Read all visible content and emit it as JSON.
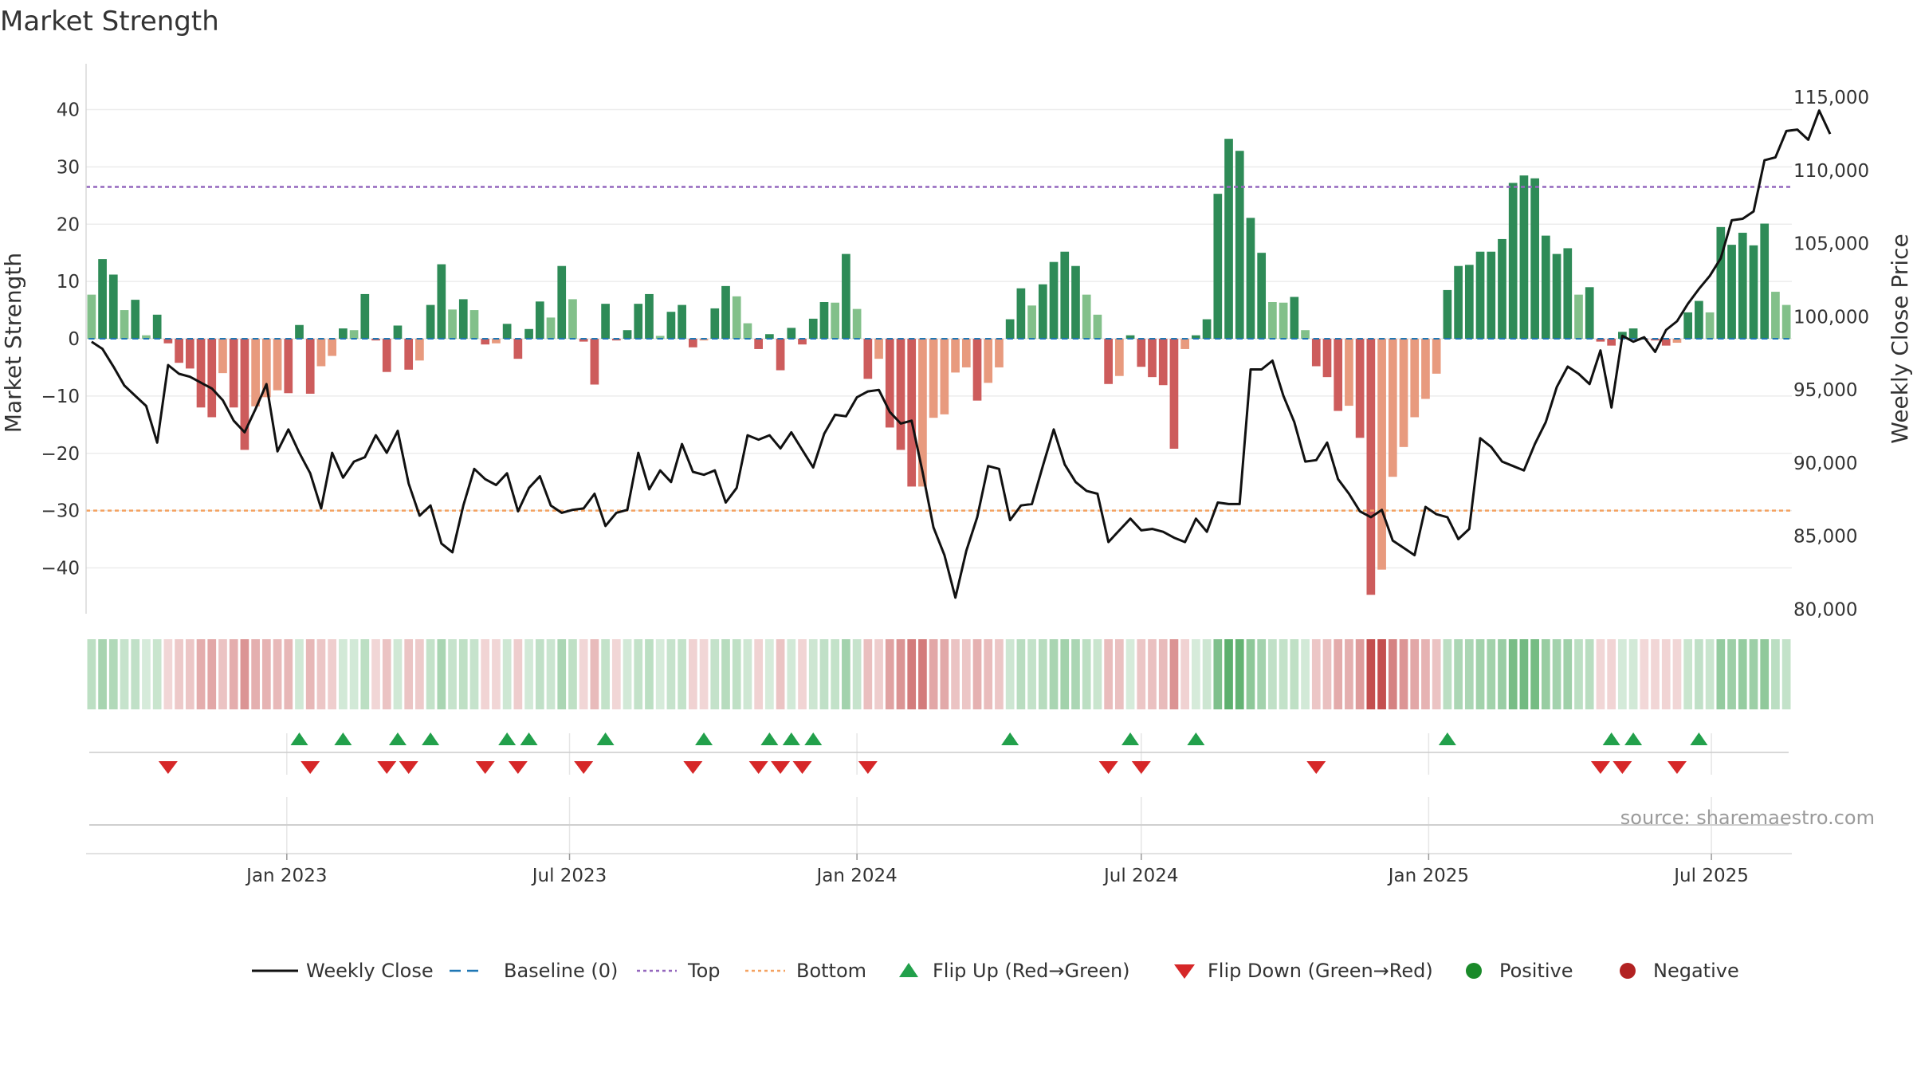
{
  "chart_data": {
    "type": "bar",
    "title": "Market Strength",
    "y_left_label": "Market Strength",
    "y_right_label": "Weekly Close Price",
    "source": "source: sharemaestro.com",
    "y_left_ticks": [
      40,
      30,
      20,
      10,
      0,
      -10,
      -20,
      -30,
      -40
    ],
    "y_left_tick_labels": [
      "40",
      "30",
      "20",
      "10",
      "0",
      "−10",
      "−20",
      "−30",
      "−40"
    ],
    "y_left_range": [
      -48,
      48
    ],
    "y_right_ticks": [
      115000,
      110000,
      105000,
      100000,
      95000,
      90000,
      85000,
      80000
    ],
    "y_right_tick_labels": [
      "115,000",
      "110,000",
      "105,000",
      "100,000",
      "95,000",
      "90,000",
      "85,000",
      "80,000"
    ],
    "y_right_range": [
      79700,
      117300
    ],
    "x_start": "2022-08-29",
    "x_ticks": [
      "2023-01-01",
      "2023-07-01",
      "2024-01-01",
      "2024-07-01",
      "2025-01-01",
      "2025-07-01"
    ],
    "x_tick_labels": [
      "Jan 2023",
      "Jul 2023",
      "Jan 2024",
      "Jul 2024",
      "Jan 2025",
      "Jul 2025"
    ],
    "top_line": 26.5,
    "bottom_line": -30,
    "baseline": 0,
    "colors": {
      "strong_pos": "#2e8b57",
      "weak_pos": "#82c08a",
      "strong_neg": "#cd5c5c",
      "weak_neg": "#e89a7e",
      "price_line": "#111111",
      "baseline": "#1f77b4",
      "top": "#9467bd",
      "bottom": "#f4a261",
      "flip_up": "#22a04b",
      "flip_down": "#d62728",
      "positive": "#1a8a2a",
      "negative": "#b22222"
    },
    "strength": [
      7.7,
      13.9,
      11.2,
      5.0,
      6.8,
      0.6,
      4.2,
      -0.8,
      -4.2,
      -5.2,
      -12.0,
      -13.7,
      -6.0,
      -12.0,
      -19.4,
      -11.8,
      -10.2,
      -9.0,
      -9.5,
      2.4,
      -9.6,
      -4.8,
      -3.0,
      1.8,
      1.5,
      7.8,
      -0.3,
      -5.8,
      2.3,
      -5.4,
      -3.8,
      5.9,
      13.0,
      5.1,
      6.9,
      5.0,
      -1.0,
      -0.8,
      2.6,
      -3.5,
      1.7,
      6.5,
      3.7,
      12.7,
      6.9,
      -0.5,
      -8.0,
      6.1,
      -0.3,
      1.5,
      6.1,
      7.8,
      0.5,
      4.7,
      5.9,
      -1.5,
      -0.3,
      5.3,
      9.2,
      7.4,
      2.7,
      -1.8,
      0.8,
      -5.5,
      1.9,
      -1.0,
      3.5,
      6.4,
      6.3,
      14.8,
      5.2,
      -7.0,
      -3.5,
      -15.5,
      -19.4,
      -25.8,
      -25.8,
      -13.8,
      -13.2,
      -5.9,
      -5.0,
      -10.8,
      -7.7,
      -5.0,
      3.4,
      8.8,
      5.8,
      9.5,
      13.4,
      15.2,
      12.7,
      7.7,
      4.2,
      -7.9,
      -6.5,
      0.6,
      -4.9,
      -6.7,
      -8.1,
      -19.2,
      -1.8,
      0.6,
      3.4,
      25.3,
      34.9,
      32.8,
      21.1,
      15.0,
      6.4,
      6.3,
      7.3,
      1.5,
      -4.8,
      -6.7,
      -12.6,
      -11.7,
      -17.3,
      -44.7,
      -40.3,
      -24.1,
      -18.9,
      -13.7,
      -10.5,
      -6.1,
      8.5,
      12.7,
      12.9,
      15.2,
      15.2,
      17.4,
      27.2,
      28.5,
      28.0,
      18.0,
      14.8,
      15.8,
      7.7,
      9.0,
      -0.5,
      -1.2,
      1.2,
      1.8,
      -0.1,
      -0.3,
      -1.2,
      -0.7,
      4.6,
      6.6,
      4.6,
      19.5,
      16.4,
      18.5,
      16.3,
      20.1,
      8.2,
      5.9
    ],
    "price": [
      98300,
      97800,
      96600,
      95300,
      94600,
      93900,
      91400,
      96700,
      96100,
      95900,
      95500,
      95100,
      94300,
      92900,
      92100,
      93700,
      95400,
      90800,
      92300,
      90700,
      89300,
      86900,
      90700,
      89000,
      90100,
      90400,
      91900,
      90700,
      92200,
      88600,
      86400,
      87100,
      84500,
      83900,
      87100,
      89600,
      88900,
      88500,
      89300,
      86700,
      88300,
      89100,
      87100,
      86600,
      86800,
      86900,
      87900,
      85700,
      86600,
      86800,
      90700,
      88200,
      89500,
      88700,
      91300,
      89400,
      89200,
      89500,
      87300,
      88300,
      91900,
      91600,
      91900,
      91000,
      92100,
      90900,
      89700,
      92000,
      93300,
      93200,
      94500,
      94900,
      95000,
      93500,
      92700,
      92900,
      89400,
      85600,
      83700,
      80800,
      84000,
      86300,
      89800,
      89600,
      86100,
      87100,
      87200,
      89800,
      92300,
      89900,
      88700,
      88100,
      87900,
      84600,
      85400,
      86200,
      85400,
      85500,
      85300,
      84900,
      84600,
      86200,
      85300,
      87300,
      87200,
      87200,
      96400,
      96400,
      97000,
      94600,
      92800,
      90100,
      90200,
      91400,
      88900,
      87900,
      86700,
      86300,
      86800,
      84700,
      84200,
      83700,
      87000,
      86500,
      86300,
      84800,
      85500,
      91700,
      91100,
      90100,
      89800,
      89500,
      91300,
      92800,
      95200,
      96600,
      96100,
      95400,
      97700,
      93800,
      98700,
      98300,
      98600,
      97600,
      99100,
      99700,
      100900,
      101900,
      102800,
      104000,
      106600,
      106700,
      107200,
      110700,
      110900,
      112700,
      112800,
      112100,
      114100,
      112500
    ],
    "flip_up": [
      19,
      23,
      28,
      31,
      38,
      40,
      47,
      56,
      62,
      64,
      66,
      84,
      95,
      101,
      124,
      139,
      141,
      147
    ],
    "flip_down": [
      7,
      20,
      27,
      29,
      36,
      39,
      45,
      55,
      61,
      63,
      65,
      71,
      93,
      96,
      112,
      138,
      140,
      145
    ],
    "legend": [
      {
        "label": "Weekly Close",
        "kind": "line"
      },
      {
        "label": "Baseline (0)",
        "kind": "dash-baseline"
      },
      {
        "label": "Top",
        "kind": "dot-top"
      },
      {
        "label": "Bottom",
        "kind": "dot-bottom"
      },
      {
        "label": "Flip Up (Red→Green)",
        "kind": "tri-up"
      },
      {
        "label": "Flip Down (Green→Red)",
        "kind": "tri-down"
      },
      {
        "label": "Positive",
        "kind": "dot-positive"
      },
      {
        "label": "Negative",
        "kind": "dot-negative"
      }
    ]
  }
}
